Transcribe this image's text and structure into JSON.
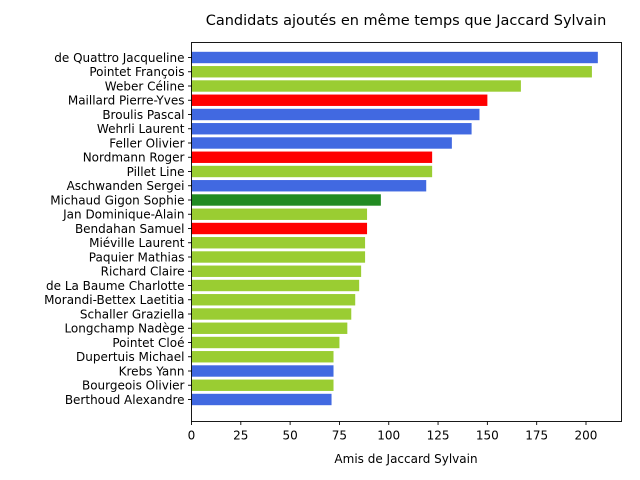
{
  "chart_data": {
    "type": "bar",
    "orientation": "horizontal",
    "title": "Candidats ajoutés en même temps que Jaccard Sylvain",
    "xlabel": "Amis de Jaccard Sylvain",
    "ylabel": "",
    "xlim": [
      0,
      218
    ],
    "xticks": [
      0,
      25,
      50,
      75,
      100,
      125,
      150,
      175,
      200
    ],
    "grid": false,
    "colors_meaning": {
      "blue": "#4169e1",
      "yellowgreen": "#9acd32",
      "red": "#ff0000",
      "forestgreen": "#228b22"
    },
    "categories": [
      "de Quattro Jacqueline",
      "Pointet François",
      "Weber Céline",
      "Maillard Pierre-Yves",
      "Broulis Pascal",
      "Wehrli Laurent",
      "Feller Olivier",
      "Nordmann Roger",
      "Pillet Line",
      "Aschwanden Sergei",
      "Michaud Gigon Sophie",
      "Jan Dominique-Alain",
      "Bendahan Samuel",
      "Miéville Laurent",
      "Paquier Mathias",
      "Richard Claire",
      "de La Baume Charlotte",
      "Morandi-Bettex Laetitia",
      "Schaller Graziella",
      "Longchamp Nadège",
      "Pointet Cloé",
      "Dupertuis Michael",
      "Krebs Yann",
      "Bourgeois Olivier",
      "Berthoud Alexandre"
    ],
    "values": [
      206,
      203,
      167,
      150,
      146,
      142,
      132,
      122,
      122,
      119,
      96,
      89,
      89,
      88,
      88,
      86,
      85,
      83,
      81,
      79,
      75,
      72,
      72,
      72,
      71
    ],
    "bar_colors": [
      "#4169e1",
      "#9acd32",
      "#9acd32",
      "#ff0000",
      "#4169e1",
      "#4169e1",
      "#4169e1",
      "#ff0000",
      "#9acd32",
      "#4169e1",
      "#228b22",
      "#9acd32",
      "#ff0000",
      "#9acd32",
      "#9acd32",
      "#9acd32",
      "#9acd32",
      "#9acd32",
      "#9acd32",
      "#9acd32",
      "#9acd32",
      "#9acd32",
      "#4169e1",
      "#9acd32",
      "#4169e1"
    ]
  }
}
